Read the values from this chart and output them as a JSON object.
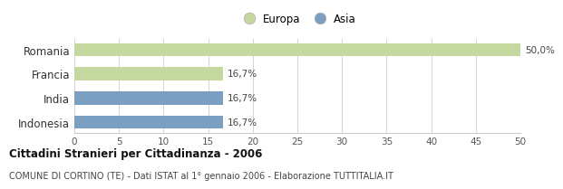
{
  "categories": [
    "Romania",
    "Francia",
    "India",
    "Indonesia"
  ],
  "values": [
    50.0,
    16.7,
    16.7,
    16.7
  ],
  "colors": [
    "#c5d8a0",
    "#c5d8a0",
    "#7b9fc0",
    "#7b9fc0"
  ],
  "legend_labels": [
    "Europa",
    "Asia"
  ],
  "legend_colors": [
    "#c5d8a0",
    "#7b9fc0"
  ],
  "bar_labels": [
    "50,0%",
    "16,7%",
    "16,7%",
    "16,7%"
  ],
  "xlim": [
    0,
    50
  ],
  "xticks": [
    0,
    5,
    10,
    15,
    20,
    25,
    30,
    35,
    40,
    45,
    50
  ],
  "title": "Cittadini Stranieri per Cittadinanza - 2006",
  "subtitle": "COMUNE DI CORTINO (TE) - Dati ISTAT al 1° gennaio 2006 - Elaborazione TUTTITALIA.IT",
  "bg_color": "#ffffff",
  "grid_color": "#cccccc",
  "bar_height": 0.55
}
